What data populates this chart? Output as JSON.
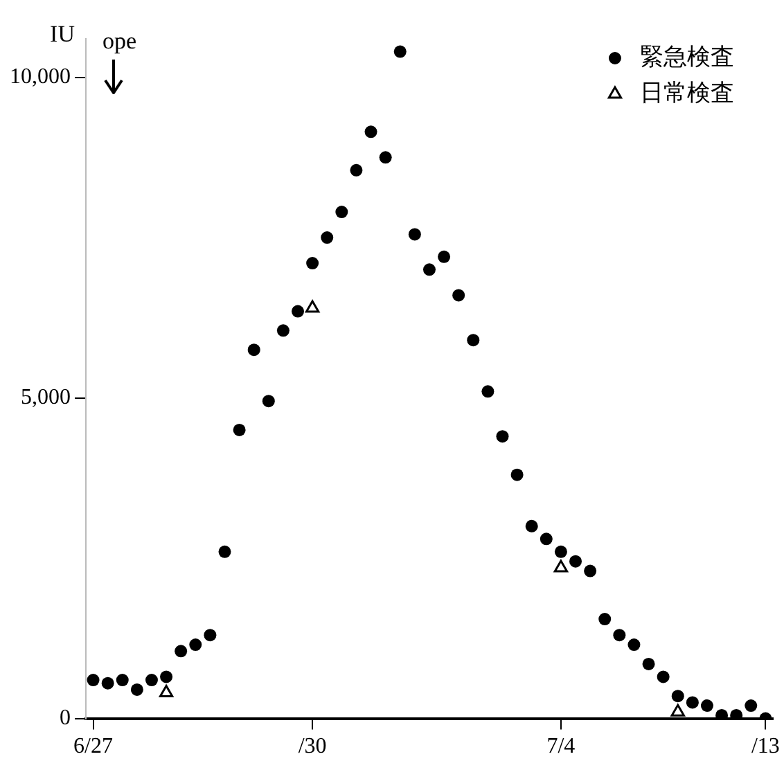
{
  "chart_data": {
    "type": "scatter",
    "ylabel": "IU",
    "annotations": [
      "ope"
    ],
    "categories": [
      "6/27",
      null,
      null,
      null,
      null,
      null,
      null,
      null,
      null,
      null,
      null,
      null,
      null,
      null,
      null,
      "/30",
      null,
      null,
      null,
      null,
      null,
      null,
      null,
      null,
      null,
      null,
      null,
      null,
      null,
      null,
      null,
      null,
      "7/4",
      null,
      null,
      null,
      null,
      null,
      null,
      null,
      null,
      null,
      null,
      null,
      null,
      null,
      "/13"
    ],
    "ylim": [
      0,
      10600
    ],
    "yticks": [
      0,
      {
        "value": 5000,
        "label": "5,000"
      },
      {
        "value": 10000,
        "label": "10,000"
      }
    ],
    "grid": false,
    "legend": "top right",
    "series": [
      {
        "name": "緊急検査",
        "color": "#000000",
        "marker": "circle",
        "values": [
          600,
          550,
          600,
          450,
          600,
          650,
          1050,
          1150,
          1300,
          2600,
          4500,
          5750,
          4950,
          6050,
          6350,
          7100,
          7500,
          7900,
          8550,
          9150,
          8750,
          10400,
          7550,
          7000,
          7200,
          6600,
          5900,
          5100,
          4400,
          3800,
          3000,
          2800,
          2600,
          2450,
          2300,
          1550,
          1300,
          1150,
          850,
          650,
          350,
          250,
          200,
          50,
          50,
          200,
          0
        ]
      },
      {
        "name": "日常検査",
        "color": "#000000",
        "marker": "triangle",
        "values": [
          null,
          null,
          null,
          null,
          null,
          400,
          null,
          null,
          null,
          null,
          null,
          null,
          null,
          null,
          null,
          6400,
          null,
          null,
          null,
          null,
          null,
          null,
          null,
          null,
          null,
          null,
          null,
          null,
          null,
          null,
          null,
          null,
          2350,
          null,
          null,
          null,
          null,
          null,
          null,
          null,
          100,
          null,
          null,
          null,
          null,
          null,
          null
        ]
      }
    ]
  }
}
